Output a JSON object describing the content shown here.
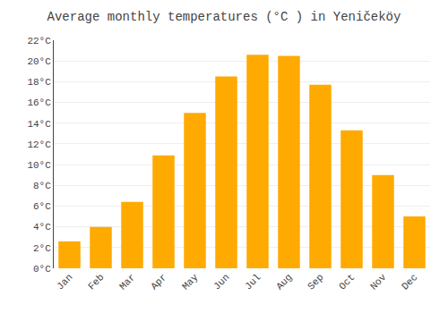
{
  "chart_data": {
    "type": "bar",
    "title": "Average monthly temperatures (°C ) in Yeničeköy",
    "categories": [
      "Jan",
      "Feb",
      "Mar",
      "Apr",
      "May",
      "Jun",
      "Jul",
      "Aug",
      "Sep",
      "Oct",
      "Nov",
      "Dec"
    ],
    "values": [
      2.6,
      4.0,
      6.4,
      10.9,
      15.0,
      18.5,
      20.6,
      20.5,
      17.7,
      13.3,
      9.0,
      5.0
    ],
    "color": "#FFAA00",
    "ylim": [
      0,
      22
    ],
    "yticks": [
      {
        "value": 0,
        "label": "0°C"
      },
      {
        "value": 2,
        "label": "2°C"
      },
      {
        "value": 4,
        "label": "4°C"
      },
      {
        "value": 6,
        "label": "6°C"
      },
      {
        "value": 8,
        "label": "8°C"
      },
      {
        "value": 10,
        "label": "10°C"
      },
      {
        "value": 12,
        "label": "12°C"
      },
      {
        "value": 14,
        "label": "14°C"
      },
      {
        "value": 16,
        "label": "16°C"
      },
      {
        "value": 18,
        "label": "18°C"
      },
      {
        "value": 20,
        "label": "20°C"
      },
      {
        "value": 22,
        "label": "22°C"
      }
    ],
    "grid": true
  }
}
